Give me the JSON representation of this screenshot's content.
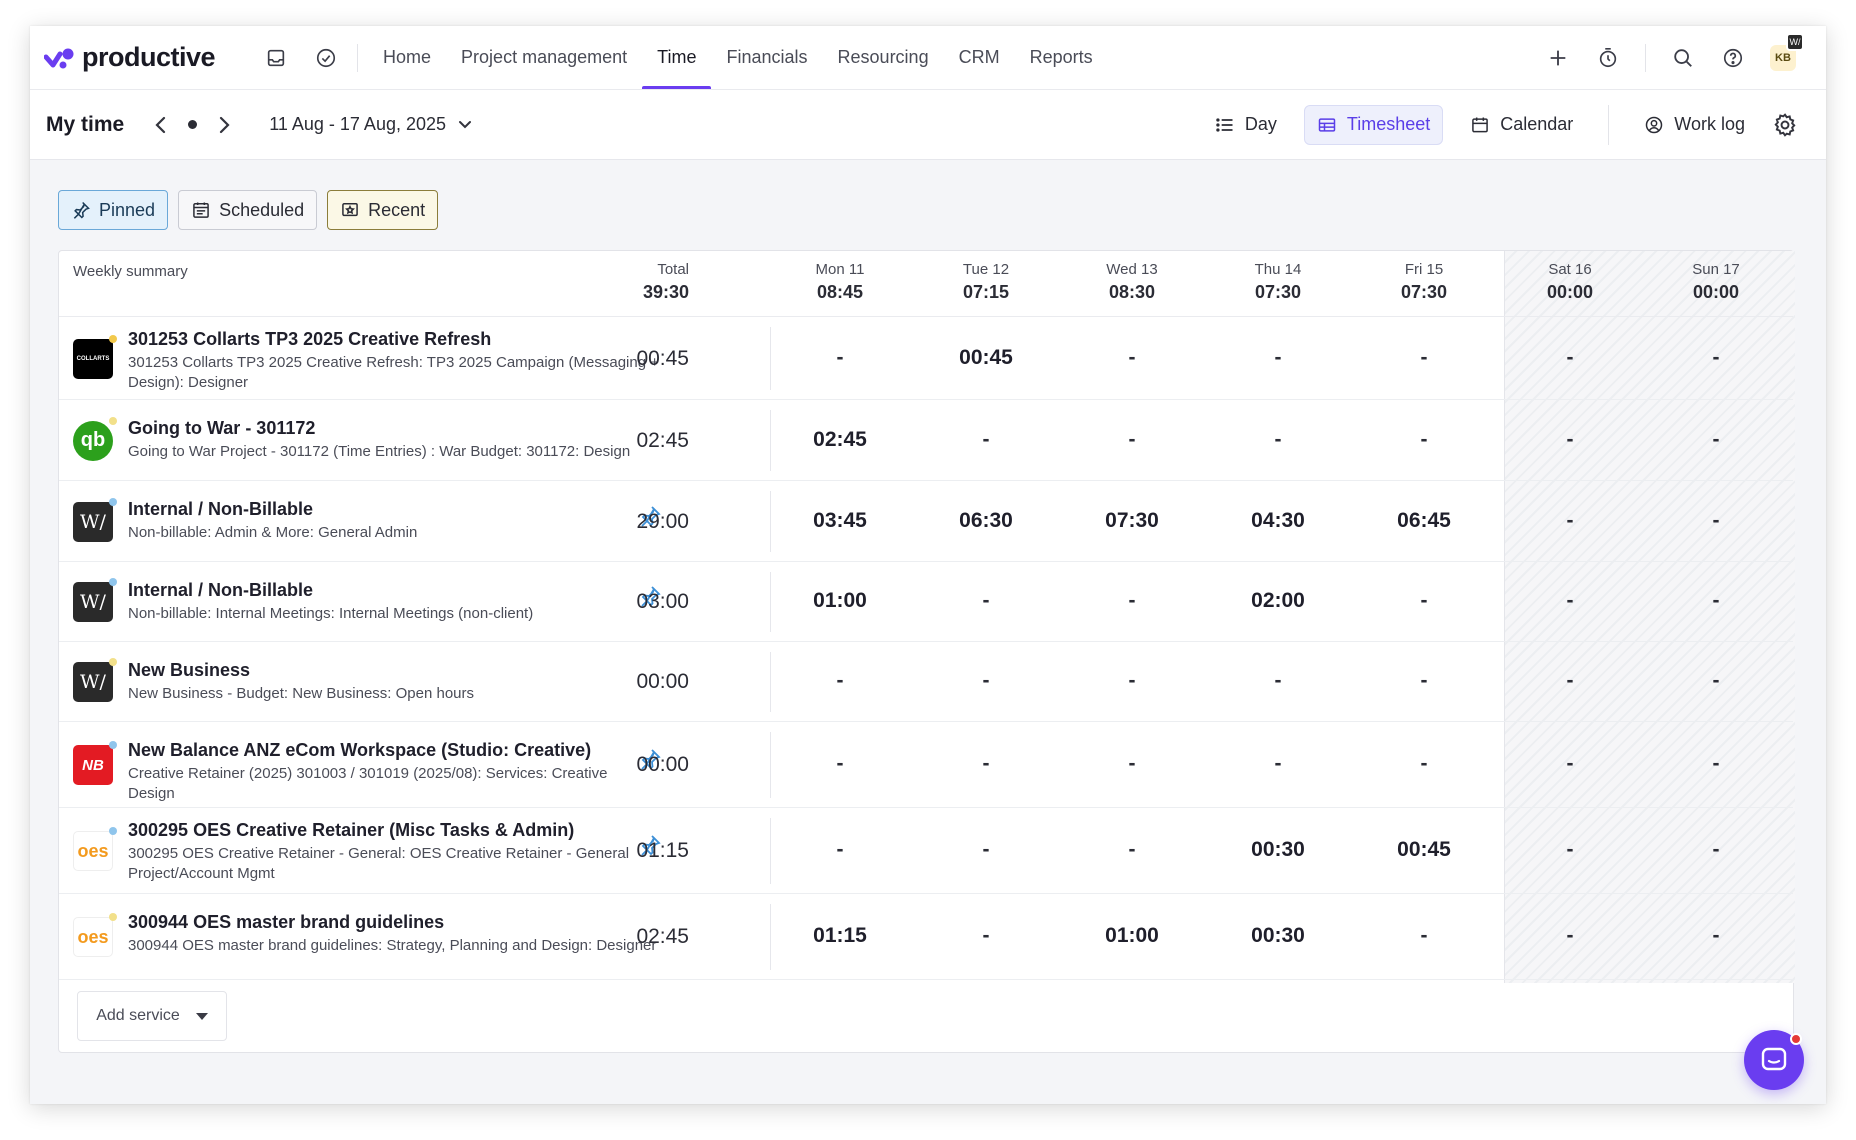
{
  "app": {
    "brand": "productive"
  },
  "nav": {
    "links": [
      "Home",
      "Project management",
      "Time",
      "Financials",
      "Resourcing",
      "CRM",
      "Reports"
    ],
    "active": "Time",
    "avatar_initials": "KB",
    "avatar_badge": "W/"
  },
  "subheader": {
    "title": "My time",
    "date_range": "11 Aug - 17 Aug, 2025",
    "views": [
      "Day",
      "Timesheet",
      "Calendar"
    ],
    "active_view": "Timesheet",
    "work_log": "Work log"
  },
  "filters": {
    "pinned": "Pinned",
    "scheduled": "Scheduled",
    "recent": "Recent"
  },
  "table": {
    "summary_label": "Weekly summary",
    "total_header": "Total",
    "total_value": "39:30",
    "days": [
      {
        "day": "Mon 11",
        "value": "08:45"
      },
      {
        "day": "Tue 12",
        "value": "07:15"
      },
      {
        "day": "Wed 13",
        "value": "08:30"
      },
      {
        "day": "Thu 14",
        "value": "07:30"
      },
      {
        "day": "Fri 15",
        "value": "07:30"
      },
      {
        "day": "Sat 16",
        "value": "00:00"
      },
      {
        "day": "Sun 17",
        "value": "00:00"
      }
    ],
    "rows": [
      {
        "logo": "collarts",
        "logo_text": "COLLARTS",
        "name": "301253 Collarts TP3 2025 Creative Refresh",
        "sub": "301253 Collarts TP3 2025 Creative Refresh: TP3 2025 Campaign (Messaging + Design): Designer",
        "pinned": false,
        "total": "00:45",
        "cells": [
          "-",
          "00:45",
          "-",
          "-",
          "-",
          "-",
          "-"
        ]
      },
      {
        "logo": "quickbooks",
        "logo_text": "qb",
        "name": "Going to War - 301172",
        "sub": "Going to War Project - 301172 (Time Entries) : War Budget: 301172: Design",
        "pinned": false,
        "total": "02:45",
        "cells": [
          "02:45",
          "-",
          "-",
          "-",
          "-",
          "-",
          "-"
        ]
      },
      {
        "logo": "w",
        "logo_text": "W/",
        "name": "Internal / Non-Billable",
        "sub": "Non-billable: Admin & More: General Admin",
        "pinned": true,
        "total": "29:00",
        "cells": [
          "03:45",
          "06:30",
          "07:30",
          "04:30",
          "06:45",
          "-",
          "-"
        ]
      },
      {
        "logo": "w",
        "logo_text": "W/",
        "name": "Internal / Non-Billable",
        "sub": "Non-billable: Internal Meetings: Internal Meetings (non-client)",
        "pinned": true,
        "total": "03:00",
        "cells": [
          "01:00",
          "-",
          "-",
          "02:00",
          "-",
          "-",
          "-"
        ]
      },
      {
        "logo": "w",
        "logo_text": "W/",
        "name": "New Business",
        "sub": "New Business - Budget: New Business: Open hours",
        "pinned": false,
        "total": "00:00",
        "cells": [
          "-",
          "-",
          "-",
          "-",
          "-",
          "-",
          "-"
        ]
      },
      {
        "logo": "newbalance",
        "logo_text": "NB",
        "name": "New Balance ANZ eCom Workspace (Studio: Creative)",
        "sub": "Creative Retainer (2025) 301003 / 301019 (2025/08): Services: Creative Design",
        "pinned": true,
        "total": "00:00",
        "cells": [
          "-",
          "-",
          "-",
          "-",
          "-",
          "-",
          "-"
        ]
      },
      {
        "logo": "oes",
        "logo_text": "oes",
        "name": "300295 OES Creative Retainer (Misc Tasks & Admin)",
        "sub": "300295 OES Creative Retainer - General: OES Creative Retainer - General Project/Account Mgmt",
        "pinned": true,
        "total": "01:15",
        "cells": [
          "-",
          "-",
          "-",
          "00:30",
          "00:45",
          "-",
          "-"
        ]
      },
      {
        "logo": "oes",
        "logo_text": "oes",
        "name": "300944 OES master brand guidelines",
        "sub": "300944 OES master brand guidelines: Strategy, Planning and Design: Designer",
        "pinned": false,
        "total": "02:45",
        "cells": [
          "01:15",
          "-",
          "01:00",
          "00:30",
          "-",
          "-",
          "-"
        ]
      }
    ],
    "add_service": "Add service"
  },
  "colors": {
    "accent": "#6a3df0",
    "pin": "#3c8fd6"
  }
}
